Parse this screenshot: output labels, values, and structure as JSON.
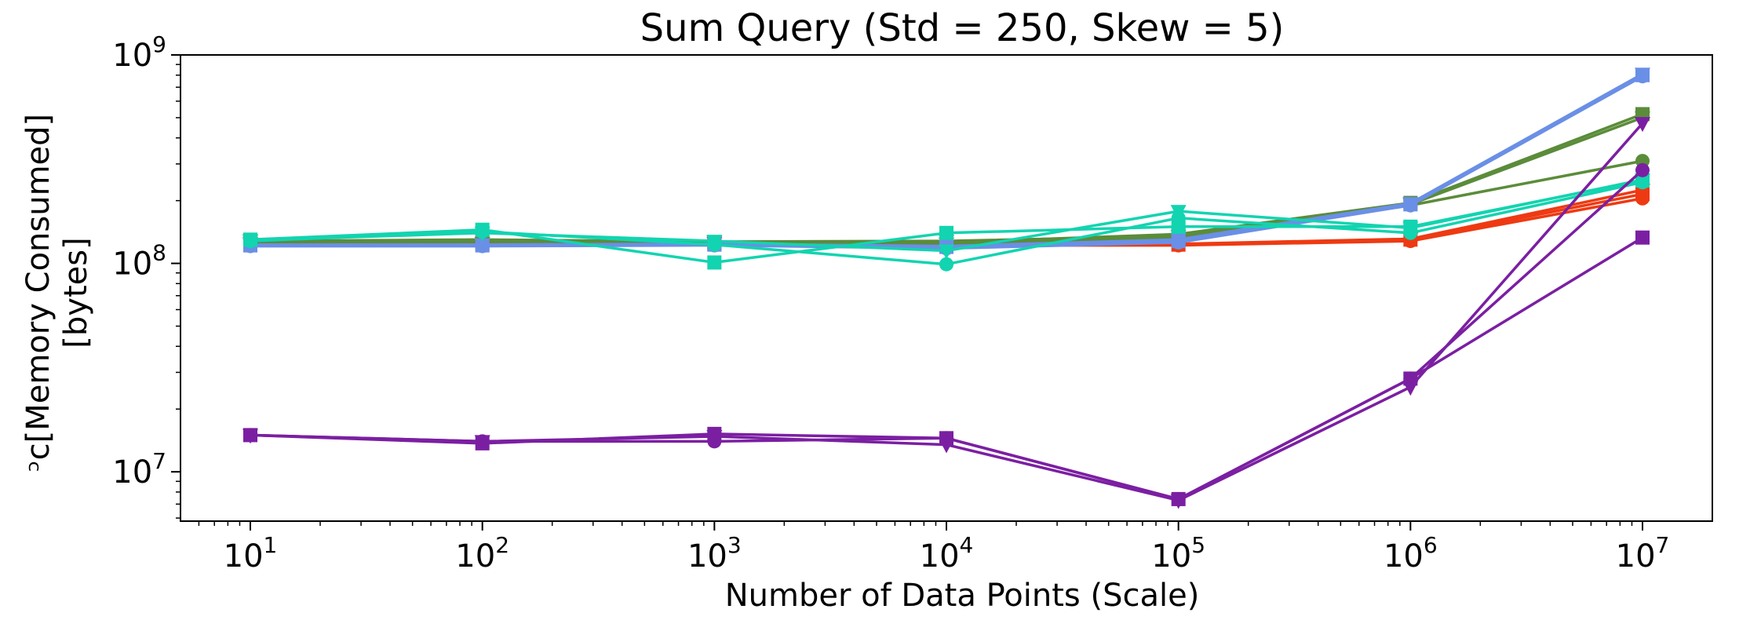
{
  "chart_data": {
    "type": "line",
    "title": "Sum Query (Std = 250, Skew = 5)",
    "xlabel": "Number of Data Points (Scale)",
    "ylabel_lines": [
      "ᵓc[Memory Consumed]",
      "[bytes]"
    ],
    "x_scale": "log",
    "y_scale": "log",
    "xlim": [
      5,
      20000000
    ],
    "ylim": [
      5800000,
      1000000000
    ],
    "x_ticks": [
      {
        "value": 10,
        "base": "10",
        "exp": "1"
      },
      {
        "value": 100,
        "base": "10",
        "exp": "2"
      },
      {
        "value": 1000,
        "base": "10",
        "exp": "3"
      },
      {
        "value": 10000,
        "base": "10",
        "exp": "4"
      },
      {
        "value": 100000,
        "base": "10",
        "exp": "5"
      },
      {
        "value": 1000000,
        "base": "10",
        "exp": "6"
      },
      {
        "value": 10000000,
        "base": "10",
        "exp": "7"
      }
    ],
    "y_ticks": [
      {
        "value": 10000000,
        "base": "10",
        "exp": "7"
      },
      {
        "value": 100000000,
        "base": "10",
        "exp": "8"
      },
      {
        "value": 1000000000,
        "base": "10",
        "exp": "9"
      }
    ],
    "grid": false,
    "legend": "none",
    "x": [
      10,
      100,
      1000,
      10000,
      100000,
      1000000,
      10000000
    ],
    "series": [
      {
        "color": "#ee3a12",
        "marker": "circle",
        "values": [
          123000000,
          123000000,
          123000000,
          122000000,
          122000000,
          128000000,
          205000000
        ]
      },
      {
        "color": "#ee3a12",
        "marker": "square",
        "values": [
          124000000,
          124000000,
          124000000,
          123000000,
          123000000,
          130000000,
          215000000
        ]
      },
      {
        "color": "#ee3a12",
        "marker": "triangle-down",
        "values": [
          125000000,
          125000000,
          125000000,
          124000000,
          124000000,
          131000000,
          225000000
        ]
      },
      {
        "color": "#5b8c3a",
        "marker": "circle",
        "values": [
          124000000,
          127000000,
          125000000,
          124000000,
          132000000,
          190000000,
          310000000
        ]
      },
      {
        "color": "#5b8c3a",
        "marker": "square",
        "values": [
          126000000,
          129000000,
          126000000,
          126000000,
          138000000,
          195000000,
          520000000
        ]
      },
      {
        "color": "#5b8c3a",
        "marker": "triangle-down",
        "values": [
          128000000,
          130000000,
          127000000,
          128000000,
          135000000,
          192000000,
          500000000
        ]
      },
      {
        "color": "#6a8fe6",
        "marker": "circle",
        "values": [
          121000000,
          121000000,
          122000000,
          118000000,
          126000000,
          190000000,
          790000000
        ]
      },
      {
        "color": "#6a8fe6",
        "marker": "square",
        "values": [
          122000000,
          122000000,
          123000000,
          120000000,
          128000000,
          192000000,
          800000000
        ]
      },
      {
        "color": "#6a8fe6",
        "marker": "triangle-down",
        "values": [
          123000000,
          123000000,
          124000000,
          121000000,
          130000000,
          194000000,
          810000000
        ]
      },
      {
        "color": "#12d4b0",
        "marker": "circle",
        "values": [
          128000000,
          142000000,
          123000000,
          99000000,
          165000000,
          140000000,
          245000000
        ]
      },
      {
        "color": "#12d4b0",
        "marker": "square",
        "values": [
          130000000,
          145000000,
          101000000,
          140000000,
          150000000,
          150000000,
          250000000
        ]
      },
      {
        "color": "#12d4b0",
        "marker": "triangle-down",
        "values": [
          129000000,
          140000000,
          128000000,
          115000000,
          178000000,
          148000000,
          252000000
        ]
      },
      {
        "color": "#7b1fa2",
        "marker": "circle",
        "values": [
          15000000,
          14000000,
          14000000,
          14500000,
          7400000,
          28000000,
          280000000
        ]
      },
      {
        "color": "#7b1fa2",
        "marker": "square",
        "values": [
          15000000,
          13700000,
          15200000,
          14500000,
          7400000,
          28000000,
          133000000
        ]
      },
      {
        "color": "#7b1fa2",
        "marker": "triangle-down",
        "values": [
          15000000,
          14000000,
          14800000,
          13500000,
          7300000,
          25500000,
          470000000
        ]
      }
    ]
  }
}
